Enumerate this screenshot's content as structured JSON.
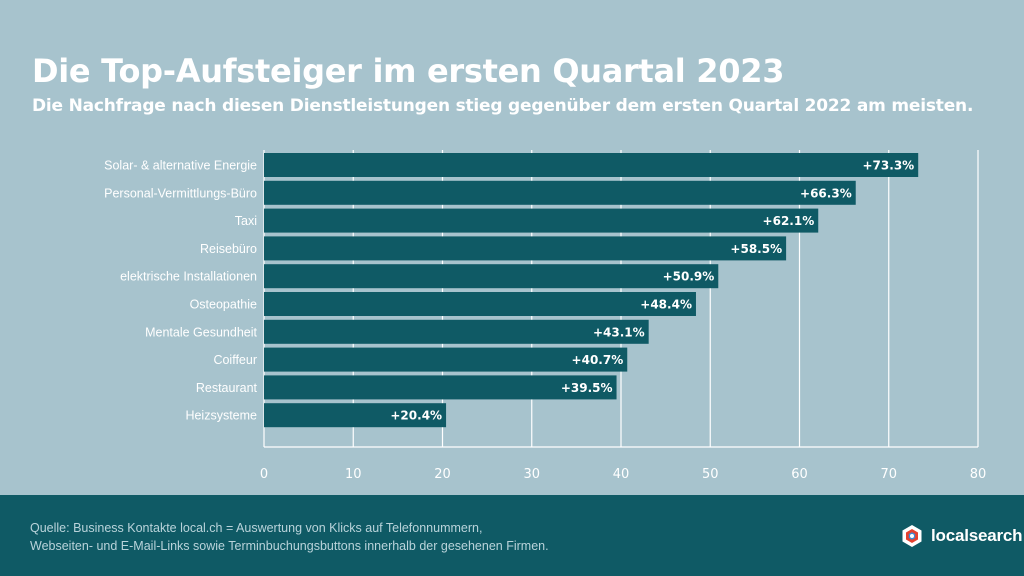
{
  "header": {
    "title": "Die Top-Aufsteiger im ersten Quartal 2023",
    "subtitle": "Die Nachfrage nach diesen Dienstleistungen stieg gegenüber dem ersten Quartal 2022 am meisten."
  },
  "chart_data": {
    "type": "bar",
    "orientation": "horizontal",
    "title": "",
    "xlabel": "",
    "ylabel": "",
    "categories": [
      "Solar- & alternative Energie",
      "Personal-Vermittlungs-Büro",
      "Taxi",
      "Reisebüro",
      "elektrische Installationen",
      "Osteopathie",
      "Mentale Gesundheit",
      "Coiffeur",
      "Restaurant",
      "Heizsysteme"
    ],
    "values": [
      73.3,
      66.3,
      62.1,
      58.5,
      50.9,
      48.4,
      43.1,
      40.7,
      39.5,
      20.4
    ],
    "data_labels": [
      "+73.3%",
      "+66.3%",
      "+62.1%",
      "+58.5%",
      "+50.9%",
      "+48.4%",
      "+43.1%",
      "+40.7%",
      "+39.5%",
      "+20.4%"
    ],
    "xlim": [
      0,
      80
    ],
    "xticks": [
      "0",
      "10",
      "20",
      "30",
      "40",
      "50",
      "60",
      "70",
      "80"
    ],
    "grid": true,
    "colors": {
      "bar": "#0f5a65",
      "grid": "#ffffff",
      "label": "#ffffff"
    }
  },
  "footer": {
    "source_line1": "Quelle: Business Kontakte local.ch = Auswertung von Klicks auf Telefonnummern,",
    "source_line2": "Webseiten- und E-Mail-Links sowie Terminbuchungsbuttons innerhalb der gesehenen Firmen.",
    "brand": "localsearch",
    "brand_icon": "localsearch-logo-icon",
    "background": "#0f5a65"
  }
}
